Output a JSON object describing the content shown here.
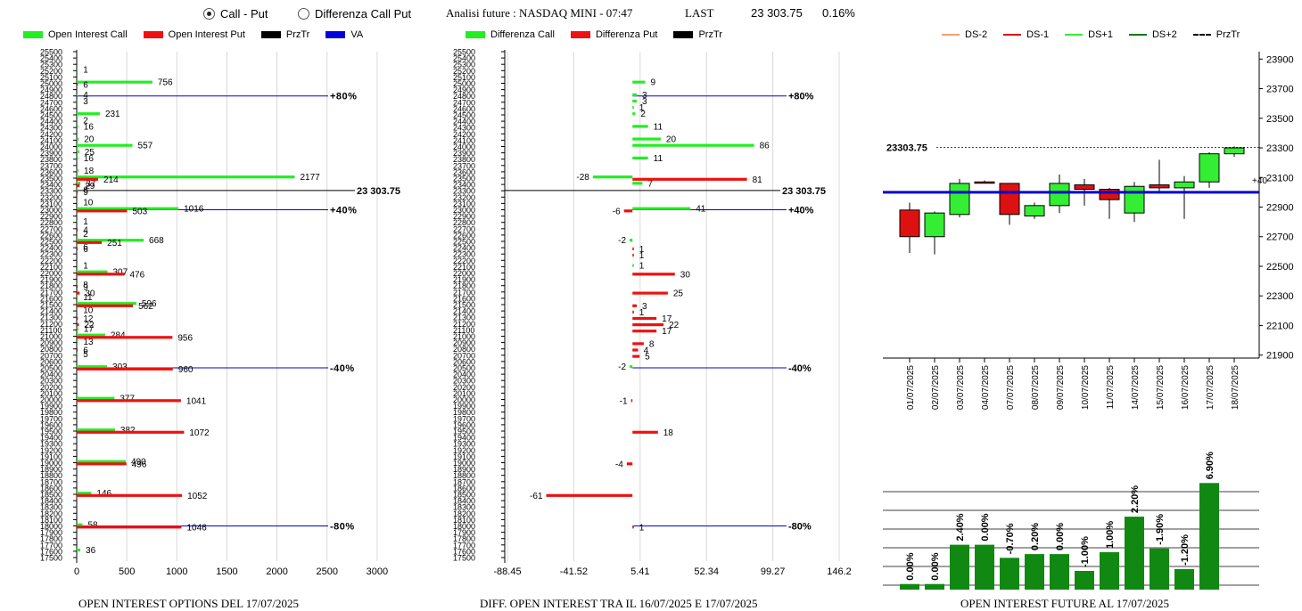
{
  "controls": {
    "radio_call_put": "Call - Put",
    "radio_diff": "Differenza Call Put",
    "selected": "call_put"
  },
  "header": {
    "title": "Analisi future : NASDAQ MINI - 07:47",
    "last_label": "LAST",
    "last_value": "23 303.75",
    "change": "0.16%"
  },
  "legends": {
    "left": [
      {
        "label": "Open Interest Call",
        "color": "#22ee22"
      },
      {
        "label": "Open Interest Put",
        "color": "#ee1111"
      },
      {
        "label": "PrzTr",
        "color": "#000000"
      },
      {
        "label": "VA",
        "color": "#0000dd"
      }
    ],
    "middle": [
      {
        "label": "Differenza Call",
        "color": "#22ee22"
      },
      {
        "label": "Differenza Put",
        "color": "#ee1111"
      },
      {
        "label": "PrzTr",
        "color": "#000000"
      }
    ],
    "right": [
      {
        "label": "DS-2",
        "color": "#f4a070"
      },
      {
        "label": "DS-1",
        "color": "#dd1111"
      },
      {
        "label": "DS+1",
        "color": "#33ee33"
      },
      {
        "label": "DS+2",
        "color": "#117711"
      },
      {
        "label": "PrzTr",
        "color": "#000000"
      }
    ]
  },
  "footers": {
    "left": "OPEN INTEREST OPTIONS DEL 17/07/2025",
    "middle": "DIFF. OPEN INTEREST TRA IL 16/07/2025 E 17/07/2025",
    "right": "OPEN INTEREST FUTURE AL 17/07/2025"
  },
  "chart_data": [
    {
      "type": "bar",
      "orientation": "horizontal",
      "strikes": [
        "25500",
        "25400",
        "25300",
        "25200",
        "25100",
        "25000",
        "24900",
        "24800",
        "24700",
        "24600",
        "24500",
        "24400",
        "24300",
        "24200",
        "24100",
        "24000",
        "23900",
        "23800",
        "23700",
        "23600",
        "23500",
        "23400",
        "23300",
        "23200",
        "23100",
        "23000",
        "22900",
        "22800",
        "22700",
        "22600",
        "22500",
        "22400",
        "22300",
        "22200",
        "22100",
        "22000",
        "21900",
        "21800",
        "21700",
        "21600",
        "21500",
        "21400",
        "21300",
        "21200",
        "21100",
        "21000",
        "20900",
        "20800",
        "20700",
        "20600",
        "20500",
        "20400",
        "20300",
        "20200",
        "20100",
        "20000",
        "19900",
        "19800",
        "19700",
        "19600",
        "19500",
        "19400",
        "19300",
        "19200",
        "19100",
        "19000",
        "18900",
        "18800",
        "18700",
        "18600",
        "18500",
        "18400",
        "18300",
        "18200",
        "18100",
        "18000",
        "17900",
        "17800",
        "17700",
        "17600",
        "17500"
      ],
      "xlim": [
        0,
        3000
      ],
      "xticks": [
        0,
        500,
        1000,
        1500,
        2000,
        2500,
        3000
      ],
      "series": [
        {
          "name": "Open Interest Call",
          "color": "#22ee22",
          "points": [
            {
              "strike": "25200",
              "value": 1
            },
            {
              "strike": "25000",
              "value": 756
            },
            {
              "strike": "24800",
              "value": 4
            },
            {
              "strike": "24700",
              "value": 3
            },
            {
              "strike": "24500",
              "value": 231
            },
            {
              "strike": "24400",
              "value": 2
            },
            {
              "strike": "24300",
              "value": 16
            },
            {
              "strike": "24100",
              "value": 20
            },
            {
              "strike": "24000",
              "value": 557
            },
            {
              "strike": "23900",
              "value": 25
            },
            {
              "strike": "23800",
              "value": 16
            },
            {
              "strike": "23600",
              "value": 18
            },
            {
              "strike": "23500",
              "value": 2177
            },
            {
              "strike": "23400",
              "value": 37
            },
            {
              "strike": "23300",
              "value": 6
            },
            {
              "strike": "23100",
              "value": 10
            },
            {
              "strike": "23000",
              "value": 1016
            },
            {
              "strike": "22800",
              "value": 1
            },
            {
              "strike": "22600",
              "value": 2
            },
            {
              "strike": "22500",
              "value": 668
            },
            {
              "strike": "22400",
              "value": 6
            },
            {
              "strike": "22100",
              "value": 1
            },
            {
              "strike": "22000",
              "value": 307
            },
            {
              "strike": "21800",
              "value": 8
            },
            {
              "strike": "21600",
              "value": 11
            },
            {
              "strike": "21500",
              "value": 596
            },
            {
              "strike": "21400",
              "value": 10
            },
            {
              "strike": "21100",
              "value": 17
            },
            {
              "strike": "21000",
              "value": 284
            },
            {
              "strike": "20900",
              "value": 13
            },
            {
              "strike": "20700",
              "value": 5
            },
            {
              "strike": "20500",
              "value": 303
            },
            {
              "strike": "20000",
              "value": 377
            },
            {
              "strike": "19500",
              "value": 382
            },
            {
              "strike": "19000",
              "value": 490
            },
            {
              "strike": "18500",
              "value": 146
            },
            {
              "strike": "18000",
              "value": 58
            },
            {
              "strike": "17600",
              "value": 36
            }
          ]
        },
        {
          "name": "Open Interest Put",
          "color": "#ee1111",
          "points": [
            {
              "strike": "25000",
              "value": 6
            },
            {
              "strike": "23500",
              "value": 214
            },
            {
              "strike": "23400",
              "value": 29
            },
            {
              "strike": "23300",
              "value": 9
            },
            {
              "strike": "23000",
              "value": 503
            },
            {
              "strike": "22700",
              "value": 4
            },
            {
              "strike": "22500",
              "value": 251
            },
            {
              "strike": "22400",
              "value": 6
            },
            {
              "strike": "22000",
              "value": 476
            },
            {
              "strike": "21800",
              "value": 9
            },
            {
              "strike": "21700",
              "value": 30
            },
            {
              "strike": "21500",
              "value": 562
            },
            {
              "strike": "21300",
              "value": 12
            },
            {
              "strike": "21200",
              "value": 22
            },
            {
              "strike": "21000",
              "value": 956
            },
            {
              "strike": "20800",
              "value": 6
            },
            {
              "strike": "20500",
              "value": 960
            },
            {
              "strike": "20000",
              "value": 1041
            },
            {
              "strike": "19500",
              "value": 1072
            },
            {
              "strike": "19000",
              "value": 496
            },
            {
              "strike": "18500",
              "value": 1052
            },
            {
              "strike": "18000",
              "value": 1046
            }
          ]
        }
      ],
      "reference_lines": [
        {
          "strike": "24800",
          "label": "+80%",
          "color": "#0000dd"
        },
        {
          "strike": "23000",
          "label": "+40%",
          "color": "#0000dd"
        },
        {
          "strike": "20500",
          "label": "-40%",
          "color": "#0000dd"
        },
        {
          "strike": "18000",
          "label": "-80%",
          "color": "#0000dd"
        }
      ],
      "price_line": {
        "value": 23303.75,
        "label": "23 303.75"
      },
      "title": "OPEN INTEREST OPTIONS DEL 17/07/2025"
    },
    {
      "type": "bar",
      "orientation": "horizontal",
      "strikes": [
        "25500",
        "25400",
        "25300",
        "25200",
        "25100",
        "25000",
        "24900",
        "24800",
        "24700",
        "24600",
        "24500",
        "24400",
        "24300",
        "24200",
        "24100",
        "24000",
        "23900",
        "23800",
        "23700",
        "23600",
        "23500",
        "23400",
        "23300",
        "23200",
        "23100",
        "23000",
        "22900",
        "22800",
        "22700",
        "22600",
        "22500",
        "22400",
        "22300",
        "22200",
        "22100",
        "22000",
        "21900",
        "21800",
        "21700",
        "21600",
        "21500",
        "21400",
        "21300",
        "21200",
        "21100",
        "21000",
        "20900",
        "20800",
        "20700",
        "20600",
        "20500",
        "20400",
        "20300",
        "20200",
        "20100",
        "20000",
        "19900",
        "19800",
        "19700",
        "19600",
        "19500",
        "19400",
        "19300",
        "19200",
        "19100",
        "19000",
        "18900",
        "18800",
        "18700",
        "18600",
        "18500",
        "18400",
        "18300",
        "18200",
        "18100",
        "18000",
        "17900",
        "17800",
        "17700",
        "17600",
        "17500"
      ],
      "xlim": [
        -88.45,
        146.2
      ],
      "xticks": [
        "-88.45",
        "-41.52",
        "5.41",
        "52.34",
        "99.27",
        "146.2"
      ],
      "series": [
        {
          "name": "Differenza Call",
          "color": "#22ee22",
          "points": [
            {
              "strike": "25000",
              "value": 9
            },
            {
              "strike": "24800",
              "value": 3
            },
            {
              "strike": "24700",
              "value": 3
            },
            {
              "strike": "24600",
              "value": 1
            },
            {
              "strike": "24500",
              "value": 2
            },
            {
              "strike": "24300",
              "value": 11
            },
            {
              "strike": "24100",
              "value": 20
            },
            {
              "strike": "24000",
              "value": 86
            },
            {
              "strike": "23800",
              "value": 11
            },
            {
              "strike": "23500",
              "value": -28
            },
            {
              "strike": "23400",
              "value": 7
            },
            {
              "strike": "23000",
              "value": 41
            },
            {
              "strike": "22500",
              "value": -2
            },
            {
              "strike": "22100",
              "value": 1
            },
            {
              "strike": "20500",
              "value": -2
            }
          ]
        },
        {
          "name": "Differenza Put",
          "color": "#ee1111",
          "points": [
            {
              "strike": "23500",
              "value": 81
            },
            {
              "strike": "23000",
              "value": -6
            },
            {
              "strike": "22400",
              "value": 1
            },
            {
              "strike": "22300",
              "value": 1
            },
            {
              "strike": "22000",
              "value": 30
            },
            {
              "strike": "21700",
              "value": 25
            },
            {
              "strike": "21500",
              "value": 3
            },
            {
              "strike": "21400",
              "value": 1
            },
            {
              "strike": "21300",
              "value": 17
            },
            {
              "strike": "21200",
              "value": 22
            },
            {
              "strike": "21100",
              "value": 17
            },
            {
              "strike": "20900",
              "value": 8
            },
            {
              "strike": "20800",
              "value": 4
            },
            {
              "strike": "20700",
              "value": 5
            },
            {
              "strike": "20000",
              "value": -1
            },
            {
              "strike": "19500",
              "value": 18
            },
            {
              "strike": "19000",
              "value": -4
            },
            {
              "strike": "18500",
              "value": -61
            },
            {
              "strike": "18000",
              "value": 1
            }
          ]
        }
      ],
      "reference_lines": [
        {
          "strike": "24800",
          "label": "+80%",
          "color": "#0000dd"
        },
        {
          "strike": "23000",
          "label": "+40%",
          "color": "#0000dd"
        },
        {
          "strike": "20500",
          "label": "-40%",
          "color": "#0000dd"
        },
        {
          "strike": "18000",
          "label": "-80%",
          "color": "#0000dd"
        }
      ],
      "price_line": {
        "value": 23303.75,
        "label": "23 303.75"
      },
      "title": "DIFF. OPEN INTEREST TRA IL 16/07/2025 E 17/07/2025"
    },
    {
      "type": "candlestick",
      "dates": [
        "01/07/2025",
        "02/07/2025",
        "03/07/2025",
        "04/07/2025",
        "07/07/2025",
        "08/07/2025",
        "09/07/2025",
        "10/07/2025",
        "11/07/2025",
        "14/07/2025",
        "15/07/2025",
        "16/07/2025",
        "17/07/2025",
        "18/07/2025"
      ],
      "ohlc": [
        {
          "o": 22880,
          "h": 22930,
          "l": 22590,
          "c": 22700,
          "color": "#dd1111"
        },
        {
          "o": 22700,
          "h": 22870,
          "l": 22580,
          "c": 22860,
          "color": "#33ee33"
        },
        {
          "o": 22850,
          "h": 23090,
          "l": 22830,
          "c": 23060,
          "color": "#33ee33"
        },
        {
          "o": 23070,
          "h": 23080,
          "l": 23060,
          "c": 23070,
          "color": "#dd1111"
        },
        {
          "o": 23060,
          "h": 23060,
          "l": 22780,
          "c": 22850,
          "color": "#dd1111"
        },
        {
          "o": 22840,
          "h": 22930,
          "l": 22820,
          "c": 22910,
          "color": "#33ee33"
        },
        {
          "o": 22910,
          "h": 23120,
          "l": 22860,
          "c": 23060,
          "color": "#33ee33"
        },
        {
          "o": 23050,
          "h": 23090,
          "l": 22910,
          "c": 23020,
          "color": "#dd1111"
        },
        {
          "o": 23020,
          "h": 23030,
          "l": 22820,
          "c": 22950,
          "color": "#dd1111"
        },
        {
          "o": 22860,
          "h": 23070,
          "l": 22800,
          "c": 23040,
          "color": "#33ee33"
        },
        {
          "o": 23050,
          "h": 23220,
          "l": 22990,
          "c": 23030,
          "color": "#dd1111"
        },
        {
          "o": 23030,
          "h": 23110,
          "l": 22820,
          "c": 23070,
          "color": "#33ee33"
        },
        {
          "o": 23070,
          "h": 23270,
          "l": 23030,
          "c": 23260,
          "color": "#33ee33"
        },
        {
          "o": 23260,
          "h": 23310,
          "l": 23240,
          "c": 23300,
          "color": "#33ee33"
        }
      ],
      "ylim": [
        21880,
        23950
      ],
      "yticks": [
        21900,
        22100,
        22300,
        22500,
        22700,
        22900,
        23100,
        23300,
        23500,
        23700,
        23900
      ],
      "price_line": {
        "value": 23303.75,
        "label": "23303.75"
      },
      "va_line": {
        "value": 23000,
        "label": "+40",
        "color": "#0000cc"
      }
    },
    {
      "type": "bar",
      "categories": [
        "01/07/2025",
        "02/07/2025",
        "03/07/2025",
        "04/07/2025",
        "07/07/2025",
        "08/07/2025",
        "09/07/2025",
        "10/07/2025",
        "11/07/2025",
        "14/07/2025",
        "15/07/2025",
        "16/07/2025",
        "17/07/2025"
      ],
      "values": [
        0.3,
        0.3,
        2.4,
        2.4,
        1.7,
        1.9,
        1.9,
        1.0,
        2.0,
        3.9,
        2.2,
        1.1,
        5.7
      ],
      "labels": [
        "0.00%",
        "0.00%",
        "2.40%",
        "0.00%",
        "-0.70%",
        "0.20%",
        "0.00%",
        "-1.00%",
        "1.00%",
        "2.20%",
        "-1.90%",
        "-1.20%",
        "6.90%"
      ],
      "color": "#118811",
      "title": "OPEN INTEREST FUTURE AL 17/07/2025"
    }
  ]
}
